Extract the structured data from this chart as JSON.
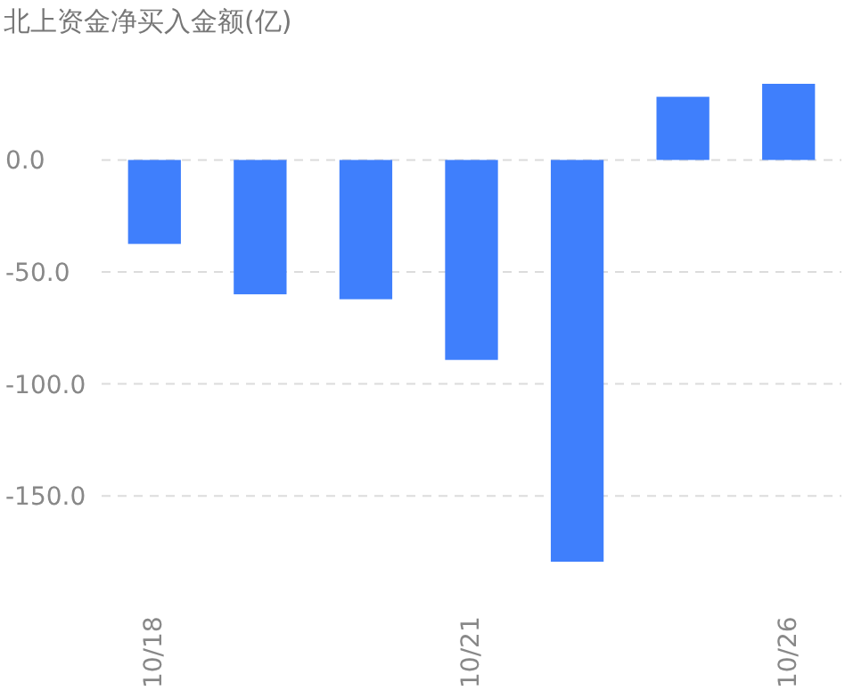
{
  "chart_data": {
    "type": "bar",
    "title": "北上资金净买入金额(亿)",
    "categories": [
      "10/18",
      null,
      null,
      "10/21",
      null,
      null,
      "10/26"
    ],
    "values": [
      -37.5,
      -60,
      -62.2,
      -89.3,
      -179.4,
      28.2,
      34
    ],
    "color": "#3f7ffc",
    "ylim": [
      -179.4,
      34
    ],
    "yticks": [
      {
        "value": 0,
        "label": "0.0"
      },
      {
        "value": -50,
        "label": "-50.0"
      },
      {
        "value": -100,
        "label": "-100.0"
      },
      {
        "value": -150,
        "label": "-150.0"
      }
    ],
    "grid": "y"
  }
}
